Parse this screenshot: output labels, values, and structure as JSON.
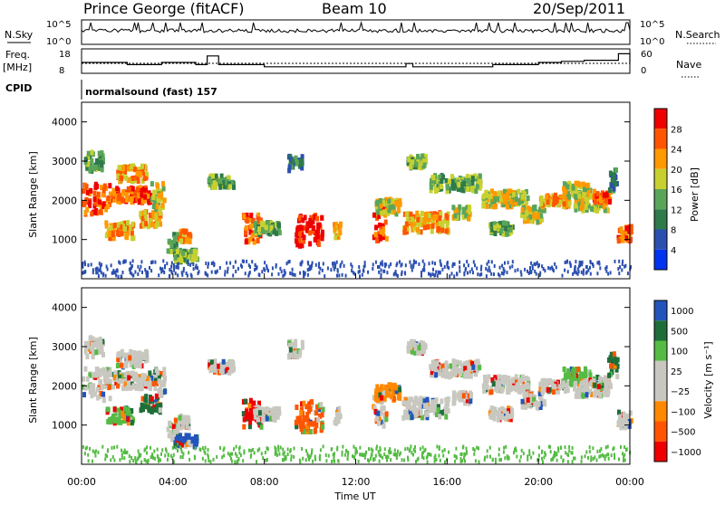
{
  "header": {
    "station": "Prince George (fitACF)",
    "beam": "Beam 10",
    "date": "20/Sep/2011"
  },
  "top_panel": {
    "left_label": "N.Sky",
    "right_label": "N.Search",
    "left_ticks": [
      "10^5",
      "10^0"
    ],
    "right_ticks": [
      "10^5",
      "10^0"
    ]
  },
  "freq_panel": {
    "left_label_1": "Freq.",
    "left_label_2": "[MHz]",
    "right_label": "Nave",
    "left_ticks": [
      "18",
      "8"
    ],
    "right_ticks": [
      "60",
      "0"
    ],
    "cpid_label": "CPID",
    "mode_label": "normalsound (fast) 157"
  },
  "colors": {
    "power_scale": [
      "#0033ee",
      "#2b4fb0",
      "#2e7a4a",
      "#5aa55a",
      "#c8d030",
      "#ff9900",
      "#ff5500",
      "#ee0000"
    ],
    "velocity_scale": [
      "#2255bb",
      "#1e6e3a",
      "#55bb44",
      "#c8c8c0",
      "#c8c8c0",
      "#ff8800",
      "#ff5500",
      "#ee0000"
    ]
  },
  "chart_data": [
    {
      "type": "heatmap",
      "name": "power",
      "ylabel": "Slant Range [km]",
      "yticks": [
        "4000",
        "3000",
        "2000",
        "1000"
      ],
      "ylim": [
        0,
        4500
      ],
      "xlim": [
        0,
        24
      ],
      "colorbar_label": "Power [dB]",
      "colorbar_ticks": [
        "28",
        "24",
        "20",
        "16",
        "12",
        "8",
        "4"
      ]
    },
    {
      "type": "heatmap",
      "name": "velocity",
      "ylabel": "Slant Range [km]",
      "yticks": [
        "4000",
        "3000",
        "2000",
        "1000"
      ],
      "ylim": [
        0,
        4500
      ],
      "xlim": [
        0,
        24
      ],
      "colorbar_label": "Velocity [m s⁻¹]",
      "colorbar_ticks": [
        "1000",
        "500",
        "100",
        "25",
        "−25",
        "−100",
        "−500",
        "−1000"
      ]
    },
    {
      "type": "line",
      "name": "frequency",
      "x": [
        0,
        1,
        2,
        3.5,
        5,
        5.5,
        6,
        8,
        10,
        12,
        14.2,
        14.5,
        17,
        18,
        20,
        21,
        22,
        23.5,
        24
      ],
      "values": [
        13,
        13,
        12,
        13,
        12,
        16,
        12,
        11,
        11,
        11,
        12.5,
        11,
        11,
        12,
        13,
        13.5,
        14,
        17,
        13
      ]
    }
  ],
  "x_axis": {
    "label": "Time UT",
    "ticks": [
      "00:00",
      "04:00",
      "08:00",
      "12:00",
      "16:00",
      "20:00",
      "00:00"
    ]
  }
}
